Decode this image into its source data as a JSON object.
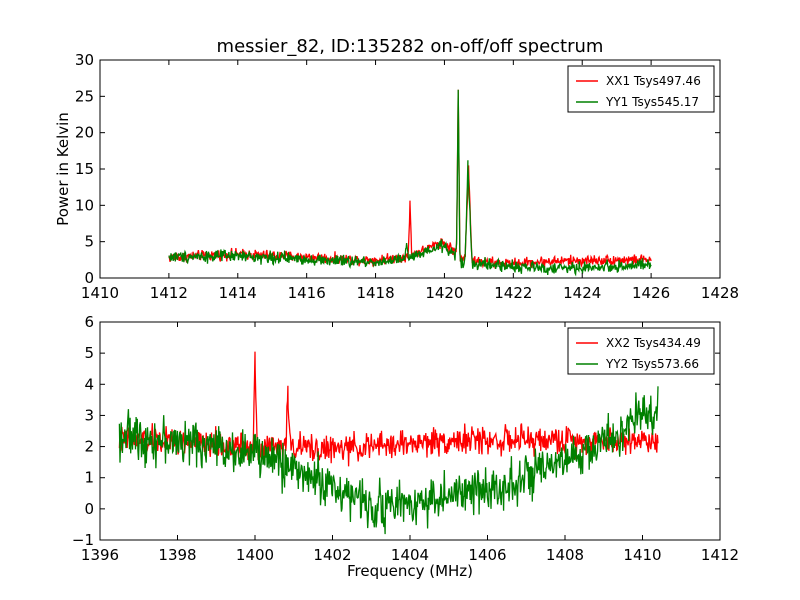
{
  "figure_title": "messier_82, ID:135282 on-off/off spectrum",
  "chart_data": [
    {
      "type": "line",
      "title": "messier_82, ID:135282 on-off/off spectrum",
      "xlabel": "",
      "ylabel": "Power in Kelvin",
      "xlim": [
        1410,
        1428
      ],
      "ylim": [
        0,
        30
      ],
      "xticks": [
        "1410",
        "1412",
        "1414",
        "1416",
        "1418",
        "1420",
        "1422",
        "1424",
        "1426",
        "1428"
      ],
      "yticks": [
        "0",
        "5",
        "10",
        "15",
        "20",
        "25",
        "30"
      ],
      "legend": "top-right",
      "grid": false,
      "series": [
        {
          "name": "XX1 Tsys497.46",
          "color": "#ff0000",
          "x": [
            1412.0,
            1413.0,
            1414.0,
            1415.0,
            1416.0,
            1417.0,
            1418.0,
            1418.5,
            1418.95,
            1419.0,
            1419.05,
            1419.5,
            1419.9,
            1420.2,
            1420.35,
            1420.4,
            1420.45,
            1420.6,
            1420.7,
            1420.8,
            1421.0,
            1422.0,
            1423.0,
            1424.0,
            1425.0,
            1426.0
          ],
          "y": [
            2.8,
            3.1,
            3.3,
            3.1,
            2.9,
            2.6,
            2.5,
            2.7,
            3.0,
            10.3,
            3.2,
            4.0,
            5.0,
            4.1,
            3.6,
            25.9,
            2.5,
            2.8,
            15.5,
            2.4,
            2.2,
            2.0,
            2.3,
            2.4,
            2.5,
            2.5
          ],
          "noise": 0.35
        },
        {
          "name": "YY1 Tsys545.17",
          "color": "#008000",
          "x": [
            1412.0,
            1413.0,
            1414.0,
            1415.0,
            1416.0,
            1417.0,
            1418.0,
            1418.5,
            1418.85,
            1418.9,
            1418.95,
            1419.5,
            1419.9,
            1420.2,
            1420.35,
            1420.4,
            1420.45,
            1420.6,
            1420.68,
            1420.8,
            1421.0,
            1422.0,
            1423.0,
            1424.0,
            1425.0,
            1426.0
          ],
          "y": [
            2.9,
            3.0,
            3.0,
            2.8,
            2.6,
            2.3,
            2.2,
            2.4,
            2.6,
            4.8,
            2.7,
            3.5,
            4.5,
            3.6,
            3.2,
            25.9,
            2.0,
            2.2,
            15.3,
            2.0,
            1.9,
            1.6,
            1.3,
            1.4,
            1.6,
            1.8
          ],
          "noise": 0.4
        }
      ]
    },
    {
      "type": "line",
      "title": "",
      "xlabel": "Frequency (MHz)",
      "ylabel": "",
      "xlim": [
        1396,
        1412
      ],
      "ylim": [
        -1,
        6
      ],
      "xticks": [
        "1396",
        "1398",
        "1400",
        "1402",
        "1404",
        "1406",
        "1408",
        "1410",
        "1412"
      ],
      "yticks": [
        "−1",
        "0",
        "1",
        "2",
        "3",
        "4",
        "5",
        "6"
      ],
      "legend": "top-right",
      "grid": false,
      "series": [
        {
          "name": "XX2 Tsys434.49",
          "color": "#ff0000",
          "x": [
            1396.5,
            1397.5,
            1398.5,
            1399.5,
            1399.95,
            1400.0,
            1400.05,
            1400.5,
            1400.8,
            1400.85,
            1400.9,
            1402.0,
            1403.0,
            1404.0,
            1405.0,
            1406.0,
            1407.0,
            1408.0,
            1409.0,
            1410.0,
            1410.4
          ],
          "y": [
            2.2,
            2.2,
            2.1,
            2.0,
            2.0,
            5.05,
            2.0,
            2.0,
            2.0,
            3.95,
            2.0,
            1.9,
            2.0,
            2.1,
            2.2,
            2.2,
            2.2,
            2.2,
            2.2,
            2.2,
            2.2
          ],
          "noise": 0.22
        },
        {
          "name": "YY2 Tsys573.66",
          "color": "#008000",
          "x": [
            1396.5,
            1397.5,
            1398.5,
            1399.5,
            1400.5,
            1401.5,
            1402.5,
            1403.0,
            1403.5,
            1404.5,
            1405.5,
            1406.5,
            1407.5,
            1408.5,
            1409.5,
            1410.0,
            1410.4
          ],
          "y": [
            2.4,
            2.2,
            2.1,
            1.9,
            1.6,
            1.0,
            0.4,
            0.1,
            0.1,
            0.3,
            0.5,
            0.8,
            1.2,
            1.8,
            2.5,
            3.0,
            3.2
          ],
          "noise": 0.35
        }
      ]
    }
  ]
}
